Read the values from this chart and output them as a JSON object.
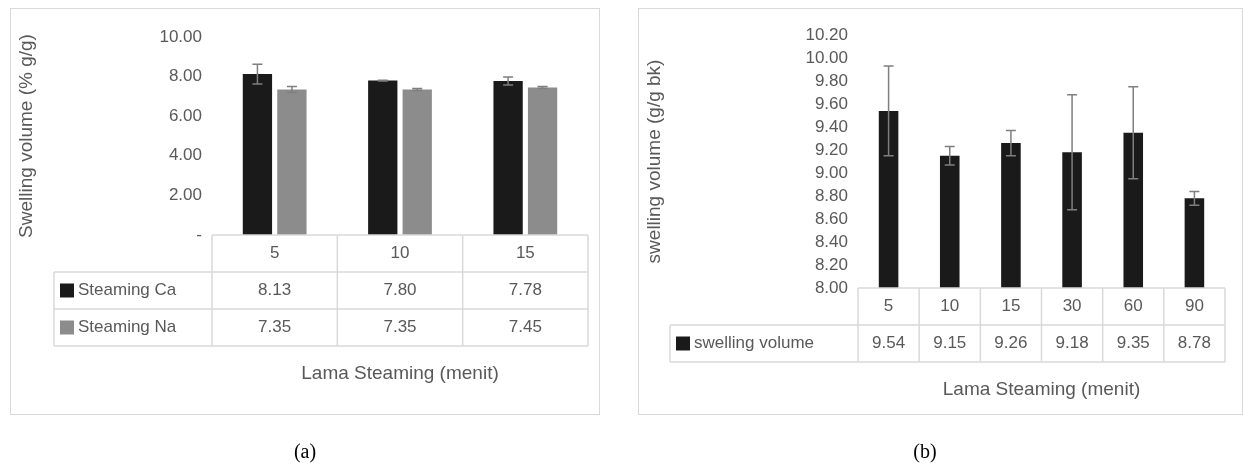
{
  "chart_data": [
    {
      "type": "bar",
      "ylabel": "Swelling volume (% g/g)",
      "xlabel": "Lama Steaming (menit)",
      "categories": [
        "5",
        "10",
        "15"
      ],
      "series": [
        {
          "name": "Steaming Ca",
          "color": "#1a1a1a",
          "values": [
            8.13,
            7.8,
            7.78
          ],
          "value_labels": [
            "8.13",
            "7.80",
            "7.78"
          ],
          "errors": [
            0.5,
            0.02,
            0.2
          ]
        },
        {
          "name": "Steaming Na",
          "color": "#8c8c8c",
          "values": [
            7.35,
            7.35,
            7.45
          ],
          "value_labels": [
            "7.35",
            "7.35",
            "7.45"
          ],
          "errors": [
            0.15,
            0.05,
            0.05
          ]
        }
      ],
      "ylim": [
        0,
        10
      ],
      "yticks": [
        {
          "value": 0,
          "label": "-"
        },
        {
          "value": 2,
          "label": "2.00"
        },
        {
          "value": 4,
          "label": "4.00"
        },
        {
          "value": 6,
          "label": "6.00"
        },
        {
          "value": 8,
          "label": "8.00"
        },
        {
          "value": 10,
          "label": "10.00"
        }
      ],
      "grid": false,
      "legend": "bottom",
      "annotations": [
        "(a)"
      ]
    },
    {
      "type": "bar",
      "ylabel": "swelling volume (g/g bk)",
      "xlabel": "Lama Steaming (menit)",
      "categories": [
        "5",
        "10",
        "15",
        "30",
        "60",
        "90"
      ],
      "series": [
        {
          "name": "swelling volume",
          "color": "#1a1a1a",
          "values": [
            9.54,
            9.15,
            9.26,
            9.18,
            9.35,
            8.78
          ],
          "value_labels": [
            "9.54",
            "9.15",
            "9.26",
            "9.18",
            "9.35",
            "8.78"
          ],
          "errors": [
            0.39,
            0.08,
            0.11,
            0.5,
            0.4,
            0.06
          ]
        }
      ],
      "ylim": [
        8,
        10.2
      ],
      "yticks": [
        {
          "value": 8,
          "label": "8.00"
        },
        {
          "value": 8.2,
          "label": "8.20"
        },
        {
          "value": 8.4,
          "label": "8.40"
        },
        {
          "value": 8.6,
          "label": "8.60"
        },
        {
          "value": 8.8,
          "label": "8.80"
        },
        {
          "value": 9,
          "label": "9.00"
        },
        {
          "value": 9.2,
          "label": "9.20"
        },
        {
          "value": 9.4,
          "label": "9.40"
        },
        {
          "value": 9.6,
          "label": "9.60"
        },
        {
          "value": 9.8,
          "label": "9.80"
        },
        {
          "value": 10,
          "label": "10.00"
        },
        {
          "value": 10.2,
          "label": "10.20"
        }
      ],
      "grid": false,
      "legend": "bottom",
      "annotations": [
        "(b)"
      ]
    }
  ]
}
